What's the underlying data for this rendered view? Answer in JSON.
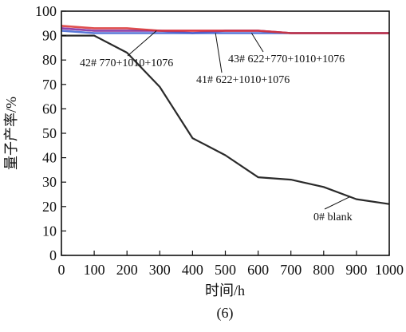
{
  "chart_data": {
    "type": "line",
    "xlabel": "时间/h",
    "ylabel": "量子产率/%",
    "caption": "(6)",
    "xlim": [
      0,
      1000
    ],
    "ylim": [
      0,
      100
    ],
    "xticks": [
      0,
      100,
      200,
      300,
      400,
      500,
      600,
      700,
      800,
      900,
      1000
    ],
    "yticks": [
      0,
      10,
      20,
      30,
      40,
      50,
      60,
      70,
      80,
      90,
      100
    ],
    "grid": false,
    "legend": "none",
    "series": [
      {
        "name": "0# blank",
        "color": "#2a2a2a",
        "x": [
          0,
          100,
          200,
          300,
          400,
          500,
          600,
          700,
          800,
          900,
          1000
        ],
        "y": [
          90,
          90,
          83,
          69,
          48,
          41,
          32,
          31,
          28,
          23,
          21
        ]
      },
      {
        "name": "42# 770+1010+1076",
        "color": "#e0408a",
        "x": [
          0,
          100,
          200,
          300,
          400,
          500,
          600,
          700,
          800,
          900,
          1000
        ],
        "y": [
          93,
          92,
          92,
          92,
          92,
          92,
          92,
          91,
          91,
          91,
          91
        ]
      },
      {
        "name": "41# 622+1010+1076",
        "color": "#7a3fb0",
        "x": [
          0,
          100,
          200,
          300,
          400,
          500,
          600,
          700,
          800,
          900,
          1000
        ],
        "y": [
          93,
          92,
          92,
          92,
          91,
          92,
          92,
          91,
          91,
          91,
          91
        ]
      },
      {
        "name": "43# 622+770+1010+1076",
        "color": "#3b5fd0",
        "x": [
          0,
          100,
          200,
          300,
          400,
          500,
          600,
          700,
          800,
          900,
          1000
        ],
        "y": [
          92,
          91,
          91,
          91,
          91,
          91,
          91,
          91,
          91,
          91,
          91
        ]
      },
      {
        "name": "",
        "color": "#d93030",
        "x": [
          0,
          100,
          200,
          300,
          400,
          500,
          600,
          700,
          800,
          900,
          1000
        ],
        "y": [
          94,
          93,
          93,
          92,
          92,
          92,
          92,
          91,
          91,
          91,
          91
        ]
      }
    ],
    "annotations": [
      {
        "text": "42# 770+1010+1076",
        "target_x": 290,
        "target_y": 92
      },
      {
        "text": "43# 622+770+1010+1076",
        "target_x": 580,
        "target_y": 91
      },
      {
        "text": "41# 622+1010+1076",
        "target_x": 470,
        "target_y": 91
      },
      {
        "text": "0# blank",
        "target_x": 880,
        "target_y": 24
      }
    ]
  }
}
